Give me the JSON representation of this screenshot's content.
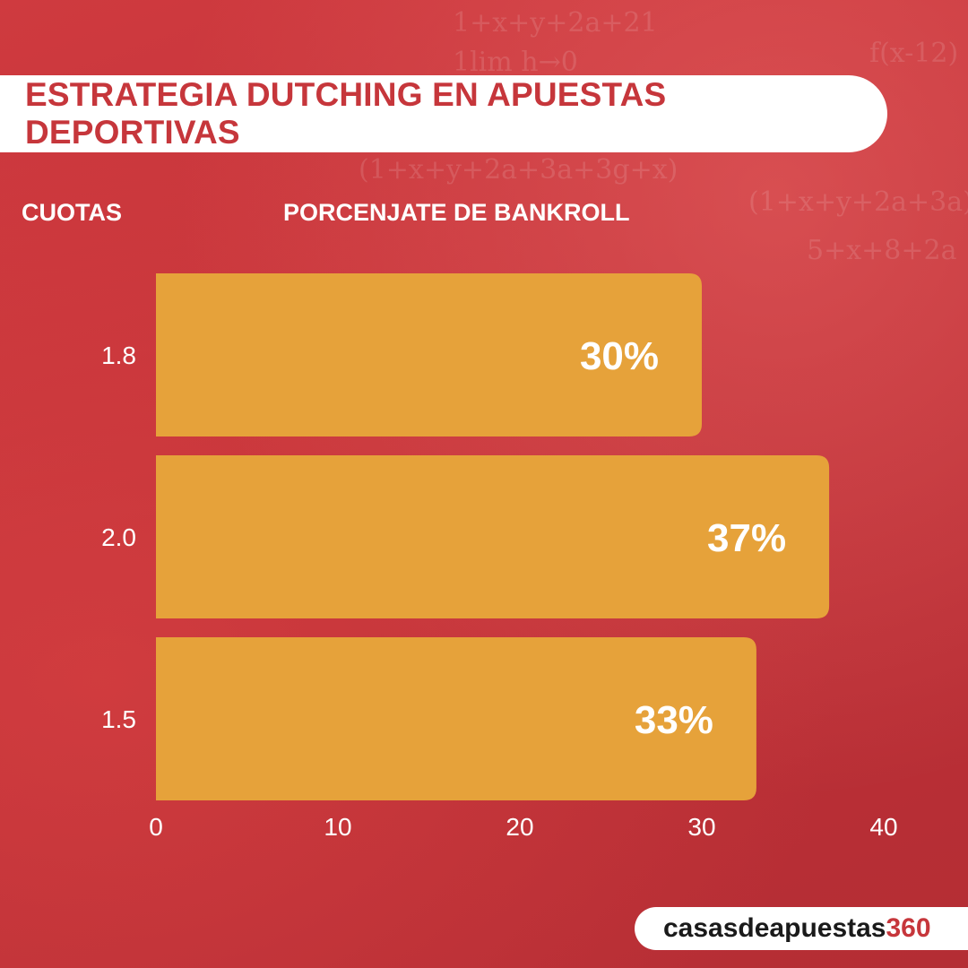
{
  "title": "ESTRATEGIA DUTCHING EN APUESTAS DEPORTIVAS",
  "headers": {
    "left": "CUOTAS",
    "right": "PORCENJATE DE BANKROLL"
  },
  "brand": {
    "name": "casasdeapuestas",
    "number": "360"
  },
  "colors": {
    "background": "#c5333a",
    "bar": "#e6a23a",
    "title_text": "#c6363b",
    "label_text": "#ffffff"
  },
  "chart_data": {
    "type": "bar",
    "orientation": "horizontal",
    "categories": [
      "1.8",
      "2.0",
      "1.5"
    ],
    "values": [
      30,
      37,
      33
    ],
    "data_labels": [
      "30%",
      "37%",
      "33%"
    ],
    "xticks": [
      "0",
      "10",
      "20",
      "30",
      "40"
    ],
    "xlim": [
      0,
      40
    ],
    "xlabel": "PORCENJATE DE BANKROLL",
    "ylabel": "CUOTAS",
    "grid": false
  }
}
